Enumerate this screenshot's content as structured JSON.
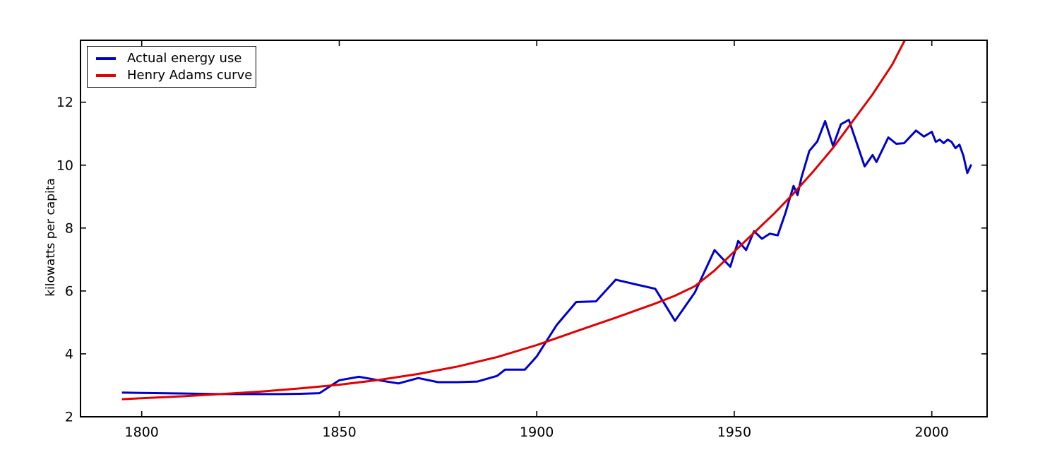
{
  "chart_data": {
    "type": "line",
    "title": "",
    "xlabel": "",
    "ylabel": "kilowatts per capita",
    "xlim": [
      1784.5,
      2014
    ],
    "ylim": [
      2,
      13.97
    ],
    "xticks": [
      1800,
      1850,
      1900,
      1950,
      2000
    ],
    "yticks": [
      2,
      4,
      6,
      8,
      10,
      12
    ],
    "grid": false,
    "legend_position": "upper left",
    "frame_color": "#000000",
    "series": [
      {
        "name": "Actual energy use",
        "color": "#0000cd",
        "points": [
          [
            1795,
            2.77
          ],
          [
            1800,
            2.76
          ],
          [
            1805,
            2.75
          ],
          [
            1810,
            2.74
          ],
          [
            1815,
            2.73
          ],
          [
            1820,
            2.72
          ],
          [
            1825,
            2.72
          ],
          [
            1830,
            2.72
          ],
          [
            1835,
            2.72
          ],
          [
            1840,
            2.73
          ],
          [
            1845,
            2.75
          ],
          [
            1850,
            3.16
          ],
          [
            1855,
            3.27
          ],
          [
            1860,
            3.16
          ],
          [
            1865,
            3.06
          ],
          [
            1870,
            3.23
          ],
          [
            1875,
            3.1
          ],
          [
            1880,
            3.1
          ],
          [
            1885,
            3.12
          ],
          [
            1890,
            3.3
          ],
          [
            1892,
            3.5
          ],
          [
            1897,
            3.5
          ],
          [
            1900,
            3.92
          ],
          [
            1905,
            4.91
          ],
          [
            1910,
            5.65
          ],
          [
            1915,
            5.67
          ],
          [
            1920,
            6.36
          ],
          [
            1925,
            6.21
          ],
          [
            1930,
            6.07
          ],
          [
            1935,
            5.05
          ],
          [
            1940,
            5.95
          ],
          [
            1945,
            7.3
          ],
          [
            1947,
            7.03
          ],
          [
            1949,
            6.77
          ],
          [
            1951,
            7.59
          ],
          [
            1953,
            7.3
          ],
          [
            1955,
            7.9
          ],
          [
            1957,
            7.66
          ],
          [
            1959,
            7.82
          ],
          [
            1961,
            7.77
          ],
          [
            1963,
            8.5
          ],
          [
            1964,
            8.93
          ],
          [
            1965,
            9.34
          ],
          [
            1966,
            9.05
          ],
          [
            1967,
            9.6
          ],
          [
            1969,
            10.45
          ],
          [
            1971,
            10.75
          ],
          [
            1973,
            11.4
          ],
          [
            1975,
            10.61
          ],
          [
            1977,
            11.3
          ],
          [
            1979,
            11.44
          ],
          [
            1981,
            10.7
          ],
          [
            1983,
            9.96
          ],
          [
            1985,
            10.32
          ],
          [
            1986,
            10.1
          ],
          [
            1989,
            10.88
          ],
          [
            1991,
            10.68
          ],
          [
            1993,
            10.7
          ],
          [
            1996,
            11.1
          ],
          [
            1998,
            10.91
          ],
          [
            2000,
            11.06
          ],
          [
            2001,
            10.74
          ],
          [
            2002,
            10.81
          ],
          [
            2003,
            10.7
          ],
          [
            2004,
            10.81
          ],
          [
            2005,
            10.74
          ],
          [
            2006,
            10.54
          ],
          [
            2007,
            10.65
          ],
          [
            2008,
            10.3
          ],
          [
            2009,
            9.75
          ],
          [
            2010,
            10.02
          ]
        ]
      },
      {
        "name": "Henry Adams curve",
        "color": "#e00000",
        "points": [
          [
            1795,
            2.56
          ],
          [
            1800,
            2.59
          ],
          [
            1810,
            2.65
          ],
          [
            1820,
            2.72
          ],
          [
            1830,
            2.8
          ],
          [
            1840,
            2.9
          ],
          [
            1850,
            3.02
          ],
          [
            1860,
            3.17
          ],
          [
            1870,
            3.36
          ],
          [
            1880,
            3.6
          ],
          [
            1890,
            3.9
          ],
          [
            1900,
            4.28
          ],
          [
            1910,
            4.72
          ],
          [
            1920,
            5.15
          ],
          [
            1930,
            5.6
          ],
          [
            1935,
            5.85
          ],
          [
            1940,
            6.15
          ],
          [
            1945,
            6.65
          ],
          [
            1950,
            7.25
          ],
          [
            1955,
            7.85
          ],
          [
            1960,
            8.45
          ],
          [
            1965,
            9.1
          ],
          [
            1970,
            9.8
          ],
          [
            1975,
            10.55
          ],
          [
            1980,
            11.4
          ],
          [
            1985,
            12.25
          ],
          [
            1990,
            13.2
          ],
          [
            1993.5,
            14.05
          ]
        ]
      }
    ]
  }
}
